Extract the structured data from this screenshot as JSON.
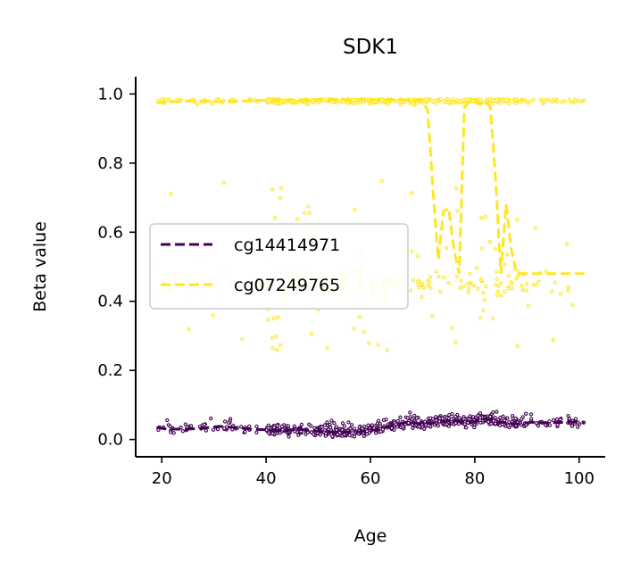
{
  "chart_data": {
    "type": "scatter",
    "title": "SDK1",
    "xlabel": "Age",
    "ylabel": "Beta value",
    "xlim": [
      15,
      105
    ],
    "ylim": [
      -0.05,
      1.05
    ],
    "xticks": [
      20,
      40,
      60,
      80,
      100
    ],
    "xtick_labels": [
      "20",
      "40",
      "60",
      "80",
      "100"
    ],
    "yticks": [
      0.0,
      0.2,
      0.4,
      0.6,
      0.8,
      1.0
    ],
    "ytick_labels": [
      "0.0",
      "0.2",
      "0.4",
      "0.6",
      "0.8",
      "1.0"
    ],
    "grid": false,
    "legend_position": "center-left",
    "series": [
      {
        "name": "cg14414971",
        "color": "#440154",
        "line": {
          "x": [
            19,
            21,
            23,
            25,
            28,
            31,
            34,
            37,
            40,
            43,
            46,
            49,
            52,
            55,
            58,
            61,
            64,
            67,
            70,
            73,
            76,
            79,
            82,
            85,
            88,
            91,
            94,
            97,
            101
          ],
          "y": [
            0.035,
            0.03,
            0.03,
            0.03,
            0.033,
            0.038,
            0.035,
            0.03,
            0.028,
            0.025,
            0.03,
            0.025,
            0.022,
            0.022,
            0.022,
            0.028,
            0.04,
            0.05,
            0.045,
            0.05,
            0.055,
            0.048,
            0.06,
            0.05,
            0.045,
            0.05,
            0.048,
            0.05,
            0.05
          ]
        },
        "points_summary": {
          "age_range": [
            19,
            101
          ],
          "beta_range": [
            0.0,
            0.16
          ],
          "count": 650
        }
      },
      {
        "name": "cg07249765",
        "color": "#fde725",
        "line": {
          "x": [
            19,
            22,
            25,
            28,
            31,
            34,
            37,
            40,
            43,
            46,
            50,
            54,
            58,
            62,
            66,
            70,
            71,
            72,
            73,
            74,
            75,
            76,
            77,
            78,
            79,
            80,
            81,
            82,
            83,
            84,
            85,
            86,
            87,
            88,
            90,
            92,
            95,
            98,
            101
          ],
          "y": [
            0.975,
            0.977,
            0.98,
            0.98,
            0.978,
            0.978,
            0.98,
            0.982,
            0.982,
            0.983,
            0.984,
            0.984,
            0.984,
            0.984,
            0.983,
            0.982,
            0.95,
            0.72,
            0.52,
            0.66,
            0.67,
            0.55,
            0.48,
            0.96,
            0.98,
            0.98,
            0.97,
            0.98,
            0.96,
            0.75,
            0.48,
            0.68,
            0.55,
            0.48,
            0.48,
            0.48,
            0.48,
            0.48,
            0.48
          ]
        },
        "points_summary": {
          "age_range": [
            19,
            101
          ],
          "upper_cluster_beta": [
            0.92,
            1.0
          ],
          "lower_cluster_beta": [
            0.38,
            0.55
          ],
          "count": 650
        }
      }
    ]
  }
}
